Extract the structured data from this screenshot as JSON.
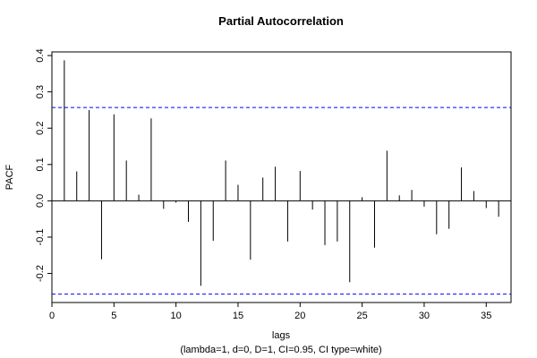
{
  "chart_data": {
    "type": "bar",
    "title": "Partial Autocorrelation",
    "xlabel": "lags",
    "subtitle": "(lambda=1, d=0, D=1, CI=0.95, CI type=white)",
    "ylabel": "PACF",
    "xlim": [
      0,
      37
    ],
    "ylim": [
      -0.28,
      0.41
    ],
    "x_ticks": [
      0,
      5,
      10,
      15,
      20,
      25,
      30,
      35
    ],
    "y_ticks": [
      -0.2,
      -0.1,
      0.0,
      0.1,
      0.2,
      0.3,
      0.4
    ],
    "y_tick_labels": [
      "-0.2",
      "-0.1",
      "0.0",
      "0.1",
      "0.2",
      "0.3",
      "0.4"
    ],
    "ci_bounds": [
      0.257,
      -0.257
    ],
    "ci_color": "#0000ff",
    "lags": [
      1,
      2,
      3,
      4,
      5,
      6,
      7,
      8,
      9,
      10,
      11,
      12,
      13,
      14,
      15,
      16,
      17,
      18,
      19,
      20,
      21,
      22,
      23,
      24,
      25,
      26,
      27,
      28,
      29,
      30,
      31,
      32,
      33,
      34,
      35,
      36
    ],
    "values": [
      0.387,
      0.081,
      0.25,
      -0.161,
      0.238,
      0.111,
      0.017,
      0.227,
      -0.022,
      -0.005,
      -0.058,
      -0.234,
      -0.11,
      0.111,
      0.044,
      -0.162,
      0.064,
      0.094,
      -0.112,
      0.082,
      -0.024,
      -0.122,
      -0.112,
      -0.224,
      0.01,
      -0.129,
      0.138,
      0.015,
      0.03,
      -0.016,
      -0.092,
      -0.077,
      0.092,
      0.027,
      -0.02,
      -0.044
    ]
  }
}
